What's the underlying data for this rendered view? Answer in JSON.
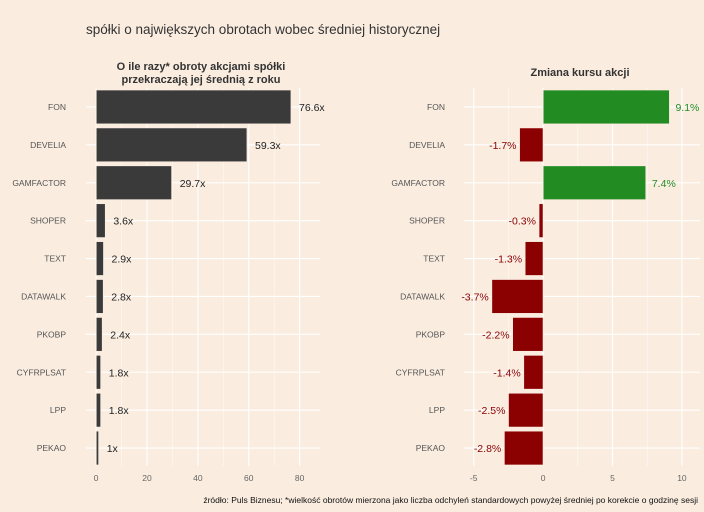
{
  "title": "spółki o największych obrotach wobec średniej historycznej",
  "source": "źródło: Puls Biznesu; *wielkość obrotów mierzona jako liczba odchyleń standardowych powyżej średniej po korekcie o godzinę sesji",
  "colors": {
    "background": "#FAEDE0",
    "bar_left": "#3A3A3A",
    "positive": "#228B22",
    "negative": "#8B0000",
    "grid": "#FFFFFF"
  },
  "chart_data": [
    {
      "type": "bar",
      "orientation": "horizontal",
      "title": "O ile razy* obroty akcjami spółki przekraczają jej średnią z roku",
      "title_lines": [
        "O ile razy* obroty akcjami spółki",
        "przekraczają jej średnią z roku"
      ],
      "categories": [
        "FON",
        "DEVELIA",
        "GAMFACTOR",
        "SHOPER",
        "TEXT",
        "DATAWALK",
        "PKOBP",
        "CYFRPLSAT",
        "LPP",
        "PEKAO"
      ],
      "values": [
        76.6,
        59.3,
        29.7,
        3.6,
        2.9,
        2.8,
        2.4,
        1.8,
        1.8,
        1.0
      ],
      "labels": [
        "76.6x",
        "59.3x",
        "29.7x",
        "3.6x",
        "2.9x",
        "2.8x",
        "2.4x",
        "1.8x",
        "1.8x",
        "1x"
      ],
      "xlim": [
        -4,
        88
      ],
      "xticks": [
        0,
        20,
        40,
        60,
        80
      ],
      "xtick_labels": [
        "0",
        "20",
        "40",
        "60",
        "80"
      ],
      "grid": true
    },
    {
      "type": "bar",
      "orientation": "horizontal",
      "title": "Zmiana kursu akcji",
      "title_lines": [
        "Zmiana kursu akcji"
      ],
      "categories": [
        "FON",
        "DEVELIA",
        "GAMFACTOR",
        "SHOPER",
        "TEXT",
        "DATAWALK",
        "PKOBP",
        "CYFRPLSAT",
        "LPP",
        "PEKAO"
      ],
      "values": [
        9.1,
        -1.7,
        7.4,
        -0.3,
        -1.3,
        -3.7,
        -2.2,
        -1.4,
        -2.5,
        -2.8
      ],
      "labels": [
        "9.1%",
        "-1.7%",
        "7.4%",
        "-0.3%",
        "-1.3%",
        "-3.7%",
        "-2.2%",
        "-1.4%",
        "-2.5%",
        "-2.8%"
      ],
      "xlim": [
        -5.7,
        11.3
      ],
      "xticks": [
        -5,
        0,
        5,
        10
      ],
      "xtick_labels": [
        "-5",
        "0",
        "5",
        "10"
      ],
      "grid": true
    }
  ]
}
